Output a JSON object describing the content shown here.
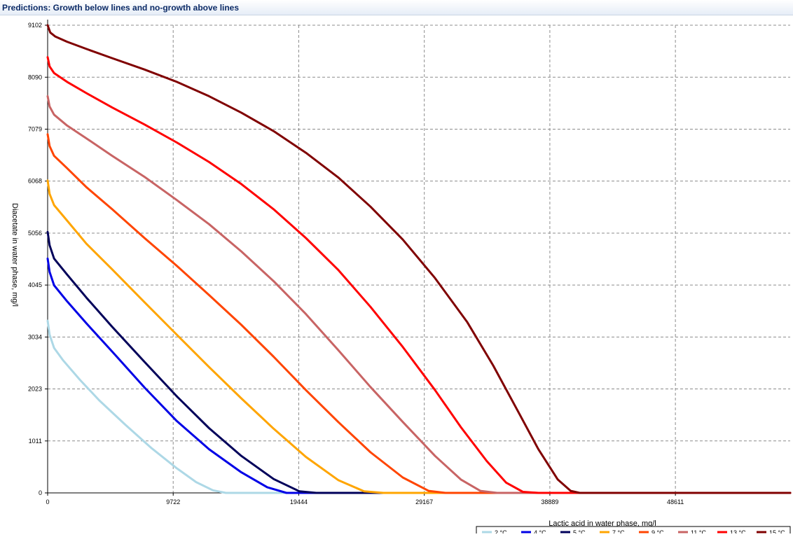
{
  "window": {
    "title": "Predictions: Growth below lines and no-growth above lines"
  },
  "colors": {
    "grid": "#8c8c8c",
    "axis": "#000000",
    "title_text": "#0b2a66"
  },
  "chart_data": {
    "type": "line",
    "title": "Predictions: Growth below lines and no-growth above lines",
    "xlabel": "Lactic acid in water phase, mg/l",
    "ylabel": "Diacetate in water phase, mg/l",
    "xlim": [
      0,
      57500
    ],
    "ylim": [
      0,
      9102
    ],
    "x_ticks": [
      0,
      9722,
      19444,
      29167,
      38889,
      48611
    ],
    "x_tick_labels": [
      "0",
      "9722",
      "19444",
      "29167",
      "38889",
      "48611"
    ],
    "y_ticks": [
      0,
      1011,
      2023,
      3034,
      4045,
      5056,
      6068,
      7079,
      8090,
      9102
    ],
    "y_tick_labels": [
      "0",
      "1011",
      "2023",
      "3034",
      "4045",
      "5056",
      "6068",
      "7079",
      "8090",
      "9102"
    ],
    "grid": true,
    "legend_position": "bottom-right",
    "series": [
      {
        "name": "2 °C",
        "color": "#add8e6",
        "points": [
          [
            0,
            3350
          ],
          [
            150,
            3080
          ],
          [
            500,
            2820
          ],
          [
            1200,
            2580
          ],
          [
            2500,
            2200
          ],
          [
            4000,
            1800
          ],
          [
            6000,
            1330
          ],
          [
            8000,
            880
          ],
          [
            10000,
            480
          ],
          [
            11500,
            210
          ],
          [
            12800,
            50
          ],
          [
            13800,
            0
          ],
          [
            57500,
            0
          ]
        ]
      },
      {
        "name": "4 °C",
        "color": "#0000e6",
        "points": [
          [
            0,
            4560
          ],
          [
            150,
            4300
          ],
          [
            500,
            4040
          ],
          [
            1500,
            3730
          ],
          [
            3000,
            3300
          ],
          [
            5000,
            2750
          ],
          [
            7500,
            2050
          ],
          [
            10000,
            1400
          ],
          [
            12500,
            850
          ],
          [
            15000,
            400
          ],
          [
            17000,
            110
          ],
          [
            18500,
            0
          ],
          [
            57500,
            0
          ]
        ]
      },
      {
        "name": "5 °C",
        "color": "#00005a",
        "points": [
          [
            0,
            5080
          ],
          [
            150,
            4820
          ],
          [
            500,
            4560
          ],
          [
            1500,
            4250
          ],
          [
            3000,
            3800
          ],
          [
            5000,
            3230
          ],
          [
            7500,
            2550
          ],
          [
            10000,
            1880
          ],
          [
            12500,
            1260
          ],
          [
            15000,
            720
          ],
          [
            17500,
            270
          ],
          [
            19500,
            30
          ],
          [
            20800,
            0
          ],
          [
            57500,
            0
          ]
        ]
      },
      {
        "name": "7 °C",
        "color": "#ffa500",
        "points": [
          [
            0,
            6080
          ],
          [
            150,
            5820
          ],
          [
            500,
            5600
          ],
          [
            1500,
            5300
          ],
          [
            3000,
            4850
          ],
          [
            5000,
            4350
          ],
          [
            7500,
            3710
          ],
          [
            10000,
            3080
          ],
          [
            12500,
            2450
          ],
          [
            15000,
            1840
          ],
          [
            17500,
            1250
          ],
          [
            20000,
            700
          ],
          [
            22500,
            250
          ],
          [
            24500,
            30
          ],
          [
            26000,
            0
          ],
          [
            57500,
            0
          ]
        ]
      },
      {
        "name": "9 °C",
        "color": "#ff4500",
        "points": [
          [
            0,
            6980
          ],
          [
            150,
            6750
          ],
          [
            500,
            6560
          ],
          [
            1500,
            6320
          ],
          [
            3000,
            5950
          ],
          [
            5000,
            5520
          ],
          [
            7500,
            4960
          ],
          [
            10000,
            4420
          ],
          [
            12500,
            3850
          ],
          [
            15000,
            3270
          ],
          [
            17500,
            2650
          ],
          [
            20000,
            2000
          ],
          [
            22500,
            1380
          ],
          [
            25000,
            790
          ],
          [
            27500,
            300
          ],
          [
            29500,
            40
          ],
          [
            30800,
            0
          ],
          [
            57500,
            0
          ]
        ]
      },
      {
        "name": "11 °C",
        "color": "#c86464",
        "points": [
          [
            0,
            7720
          ],
          [
            150,
            7520
          ],
          [
            500,
            7360
          ],
          [
            1500,
            7150
          ],
          [
            3000,
            6900
          ],
          [
            5000,
            6560
          ],
          [
            7500,
            6150
          ],
          [
            10000,
            5700
          ],
          [
            12500,
            5230
          ],
          [
            15000,
            4700
          ],
          [
            17500,
            4120
          ],
          [
            20000,
            3480
          ],
          [
            22500,
            2780
          ],
          [
            25000,
            2060
          ],
          [
            27500,
            1380
          ],
          [
            30000,
            720
          ],
          [
            32000,
            260
          ],
          [
            33500,
            40
          ],
          [
            34800,
            0
          ],
          [
            57500,
            0
          ]
        ]
      },
      {
        "name": "13 °C",
        "color": "#ff0000",
        "points": [
          [
            0,
            8480
          ],
          [
            150,
            8300
          ],
          [
            500,
            8170
          ],
          [
            1500,
            8000
          ],
          [
            3000,
            7780
          ],
          [
            5000,
            7500
          ],
          [
            7500,
            7170
          ],
          [
            10000,
            6820
          ],
          [
            12500,
            6440
          ],
          [
            15000,
            6010
          ],
          [
            17500,
            5520
          ],
          [
            20000,
            4960
          ],
          [
            22500,
            4340
          ],
          [
            25000,
            3620
          ],
          [
            27500,
            2840
          ],
          [
            30000,
            2000
          ],
          [
            32000,
            1280
          ],
          [
            34000,
            620
          ],
          [
            35500,
            200
          ],
          [
            36800,
            20
          ],
          [
            38000,
            0
          ],
          [
            57500,
            0
          ]
        ]
      },
      {
        "name": "15 °C",
        "color": "#800000",
        "points": [
          [
            0,
            9102
          ],
          [
            200,
            8960
          ],
          [
            600,
            8880
          ],
          [
            1500,
            8780
          ],
          [
            3000,
            8640
          ],
          [
            5000,
            8460
          ],
          [
            7500,
            8240
          ],
          [
            10000,
            8000
          ],
          [
            12500,
            7720
          ],
          [
            15000,
            7400
          ],
          [
            17500,
            7040
          ],
          [
            20000,
            6620
          ],
          [
            22500,
            6140
          ],
          [
            25000,
            5570
          ],
          [
            27500,
            4930
          ],
          [
            30000,
            4180
          ],
          [
            32500,
            3320
          ],
          [
            34500,
            2480
          ],
          [
            36500,
            1550
          ],
          [
            38000,
            850
          ],
          [
            39500,
            260
          ],
          [
            40500,
            40
          ],
          [
            41200,
            0
          ],
          [
            57500,
            0
          ]
        ]
      }
    ]
  }
}
